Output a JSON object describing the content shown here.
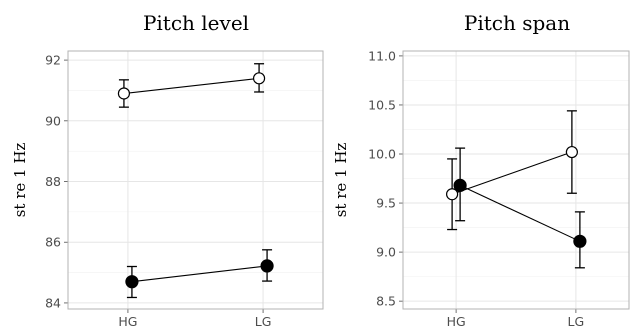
{
  "chart_data": [
    {
      "type": "line",
      "title": "Pitch level",
      "ylabel": "st re 1 Hz",
      "xlabel": "",
      "categories": [
        "HG",
        "LG"
      ],
      "ylim": [
        83.8,
        92.3
      ],
      "yticks": [
        84,
        86,
        88,
        90,
        92
      ],
      "grid": true,
      "series": [
        {
          "marker": "open-circle",
          "values": [
            90.9,
            91.4
          ],
          "ci_low": [
            90.45,
            90.95
          ],
          "ci_high": [
            91.35,
            91.88
          ]
        },
        {
          "marker": "filled-circle",
          "values": [
            84.7,
            85.22
          ],
          "ci_low": [
            84.18,
            84.72
          ],
          "ci_high": [
            85.2,
            85.75
          ]
        }
      ]
    },
    {
      "type": "line",
      "title": "Pitch span",
      "ylabel": "st re 1 Hz",
      "xlabel": "",
      "categories": [
        "HG",
        "LG"
      ],
      "ylim": [
        8.42,
        11.05
      ],
      "yticks": [
        "8.5",
        "9.0",
        "9.5",
        "10.0",
        "10.5",
        "11.0"
      ],
      "grid": true,
      "series": [
        {
          "marker": "open-circle",
          "values": [
            9.59,
            10.02
          ],
          "ci_low": [
            9.23,
            9.6
          ],
          "ci_high": [
            9.95,
            10.44
          ]
        },
        {
          "marker": "filled-circle",
          "values": [
            9.68,
            9.11
          ],
          "ci_low": [
            9.32,
            8.84
          ],
          "ci_high": [
            10.06,
            9.41
          ]
        }
      ]
    }
  ]
}
